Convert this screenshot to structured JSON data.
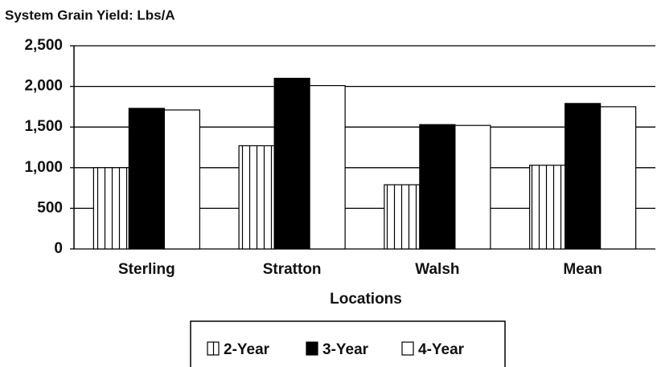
{
  "chart_data": {
    "type": "bar",
    "title": "System Grain Yield:  Lbs/A",
    "x_label": "Locations",
    "categories": [
      "Sterling",
      "Stratton",
      "Walsh",
      "Mean"
    ],
    "series": [
      {
        "name": "2-Year",
        "color": "#ffffff",
        "hatch": "vertical",
        "values": [
          1000,
          1270,
          790,
          1030
        ]
      },
      {
        "name": "3-Year",
        "color": "#000000",
        "values": [
          1730,
          2100,
          1530,
          1790
        ]
      },
      {
        "name": "4-Year",
        "color": "#ffffff",
        "values": [
          1710,
          2010,
          1520,
          1750
        ]
      }
    ],
    "ylim": [
      0,
      2500
    ],
    "yticks": [
      0,
      500,
      {
        "value": 1000,
        "label": "1,000"
      },
      {
        "value": 1500,
        "label": "1,500"
      },
      {
        "value": 2000,
        "label": "2,000"
      },
      {
        "value": 2500,
        "label": "2,500"
      }
    ],
    "grid": true,
    "legend": "bottom"
  }
}
